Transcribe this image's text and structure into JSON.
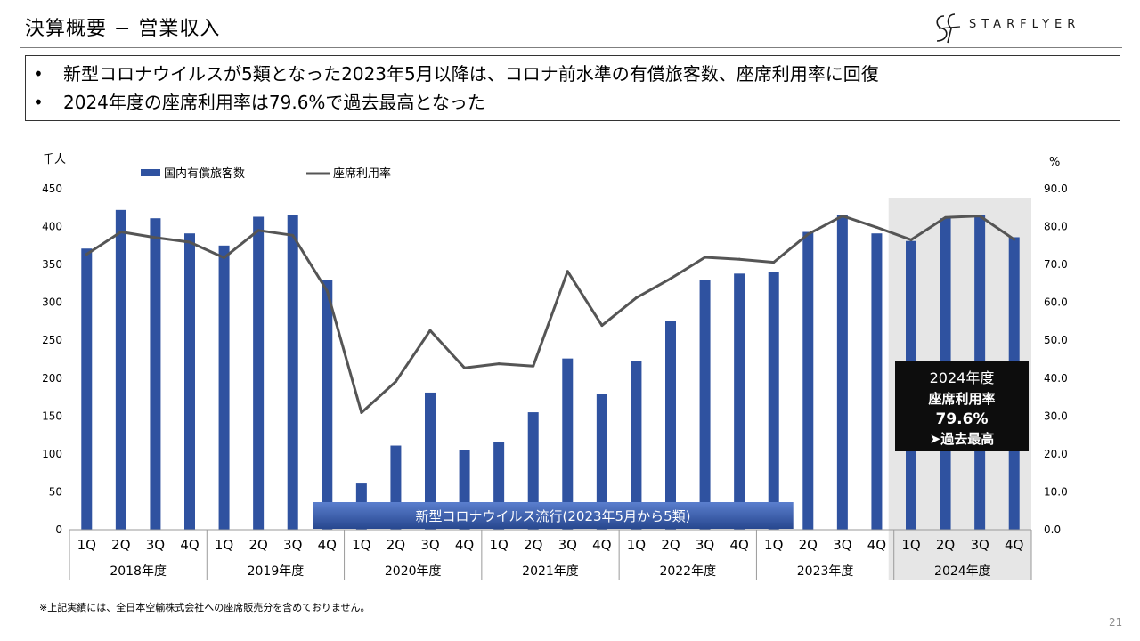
{
  "page": {
    "title": "決算概要 − 営業収入",
    "logo_text": "STARFLYER",
    "summary_bullets": [
      "新型コロナウイルスが5類となった2023年5月以降は、コロナ前水準の有償旅客数、座席利用率に回復",
      "2024年度の座席利用率は79.6%で過去最高となった"
    ],
    "footnote": "※上記実績には、全日本空輸株式会社への座席販売分を含めておりません。",
    "page_number": "21"
  },
  "chart_data": {
    "type": "bar",
    "left_unit": "千人",
    "right_unit": "%",
    "y_left_ticks": [
      "0",
      "50",
      "100",
      "150",
      "200",
      "250",
      "300",
      "350",
      "400",
      "450"
    ],
    "y_right_ticks": [
      "0.0",
      "10.0",
      "20.0",
      "30.0",
      "40.0",
      "50.0",
      "60.0",
      "70.0",
      "80.0",
      "90.0"
    ],
    "ylim_left": [
      0,
      450
    ],
    "ylim_right": [
      0,
      90
    ],
    "quarters": [
      "1Q",
      "2Q",
      "3Q",
      "4Q",
      "1Q",
      "2Q",
      "3Q",
      "4Q",
      "1Q",
      "2Q",
      "3Q",
      "4Q",
      "1Q",
      "2Q",
      "3Q",
      "4Q",
      "1Q",
      "2Q",
      "3Q",
      "4Q",
      "1Q",
      "2Q",
      "3Q",
      "4Q",
      "1Q",
      "2Q",
      "3Q",
      "4Q"
    ],
    "years": [
      "2018年度",
      "2019年度",
      "2020年度",
      "2021年度",
      "2022年度",
      "2023年度",
      "2024年度"
    ],
    "series": [
      {
        "name": "国内有償旅客数",
        "axis": "left",
        "kind": "bar",
        "color": "#2f52a0",
        "values": [
          371,
          422,
          411,
          391,
          375,
          413,
          415,
          329,
          61,
          111,
          181,
          105,
          116,
          155,
          226,
          179,
          223,
          276,
          329,
          338,
          340,
          393,
          415,
          391,
          381,
          411,
          415,
          386
        ]
      },
      {
        "name": "座席利用率",
        "axis": "right",
        "kind": "line",
        "color": "#555555",
        "values": [
          72.7,
          78.6,
          77.1,
          75.9,
          71.8,
          79.0,
          77.7,
          63.0,
          30.9,
          39.1,
          52.6,
          42.7,
          43.8,
          43.2,
          68.2,
          53.9,
          61.2,
          66.3,
          71.9,
          71.4,
          70.6,
          78.0,
          82.8,
          79.8,
          76.5,
          82.4,
          82.8,
          76.6
        ]
      }
    ],
    "annotation_banner": "新型コロナウイルス流行(2023年5月から5類)",
    "callout": {
      "line1": "2024年度",
      "line2": "座席利用率",
      "line3": "79.6%",
      "line4": "➤過去最高"
    },
    "highlight_year": "2024年度",
    "grid": false,
    "legend_position": "top-left"
  }
}
